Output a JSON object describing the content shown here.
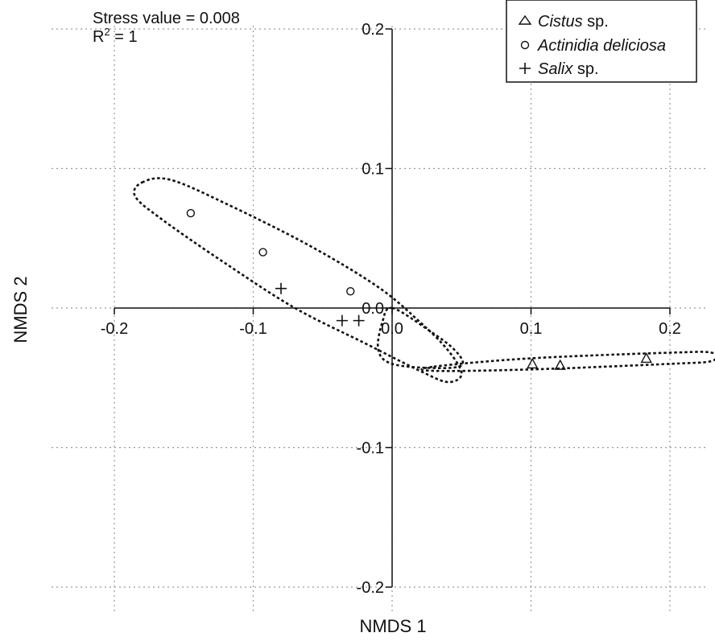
{
  "chart_data": {
    "type": "scatter",
    "title": "",
    "xlabel": "NMDS 1",
    "ylabel": "NMDS 2",
    "xlim": [
      -0.2,
      0.2
    ],
    "ylim": [
      -0.2,
      0.2
    ],
    "xticks": [
      -0.2,
      -0.1,
      0.0,
      0.1,
      0.2
    ],
    "yticks": [
      0.2,
      0.1,
      0.0,
      -0.1,
      -0.2
    ],
    "xtick_labels": [
      "-0.2",
      "-0.1",
      "0.0",
      "0.1",
      "0.2"
    ],
    "ytick_labels": [
      "0.2",
      "0.1",
      "0.0",
      "-0.1",
      "-0.2"
    ],
    "grid": true,
    "annotations": {
      "stress": "Stress value = 0.008",
      "r2_prefix": "R",
      "r2_sup": "2",
      "r2_suffix": " = 1"
    },
    "legend": {
      "placement": "top-right",
      "entries": [
        {
          "marker": "triangle",
          "italic": "Cistus",
          "plain": " sp."
        },
        {
          "marker": "circle",
          "italic": "Actinidia deliciosa",
          "plain": ""
        },
        {
          "marker": "plus",
          "italic": "Salix",
          "plain": " sp."
        }
      ]
    },
    "series": [
      {
        "marker": "triangle",
        "points": [
          [
            0.101,
            -0.04
          ],
          [
            0.121,
            -0.041
          ],
          [
            0.183,
            -0.036
          ]
        ]
      },
      {
        "marker": "circle",
        "points": [
          [
            -0.145,
            0.068
          ],
          [
            -0.093,
            0.04
          ],
          [
            -0.03,
            0.012
          ]
        ]
      },
      {
        "marker": "plus",
        "points": [
          [
            -0.08,
            0.014
          ],
          [
            -0.036,
            -0.009
          ],
          [
            -0.024,
            -0.009
          ]
        ]
      }
    ],
    "ellipses": [
      {
        "group": "circle",
        "path": [
          [
            -0.18,
            0.09
          ],
          [
            -0.16,
            0.092
          ],
          [
            -0.12,
            0.075
          ],
          [
            -0.06,
            0.045
          ],
          [
            -0.01,
            0.015
          ],
          [
            0.02,
            -0.01
          ],
          [
            0.04,
            -0.03
          ],
          [
            0.05,
            -0.047
          ],
          [
            0.04,
            -0.053
          ],
          [
            0.02,
            -0.045
          ],
          [
            -0.02,
            -0.025
          ],
          [
            -0.07,
            0.0
          ],
          [
            -0.12,
            0.032
          ],
          [
            -0.165,
            0.063
          ],
          [
            -0.185,
            0.08
          ],
          [
            -0.18,
            0.09
          ]
        ]
      },
      {
        "group": "plus",
        "path": [
          [
            0.0,
            0.0
          ],
          [
            0.025,
            -0.015
          ],
          [
            0.045,
            -0.03
          ],
          [
            0.05,
            -0.041
          ],
          [
            0.03,
            -0.043
          ],
          [
            0.0,
            -0.04
          ],
          [
            -0.01,
            -0.03
          ],
          [
            -0.007,
            -0.01
          ],
          [
            0.0,
            0.0
          ]
        ]
      },
      {
        "group": "triangle",
        "path": [
          [
            0.03,
            -0.042
          ],
          [
            0.1,
            -0.036
          ],
          [
            0.2,
            -0.032
          ],
          [
            0.23,
            -0.032
          ],
          [
            0.23,
            -0.038
          ],
          [
            0.2,
            -0.04
          ],
          [
            0.1,
            -0.044
          ],
          [
            0.03,
            -0.045
          ],
          [
            0.03,
            -0.042
          ]
        ]
      }
    ]
  }
}
